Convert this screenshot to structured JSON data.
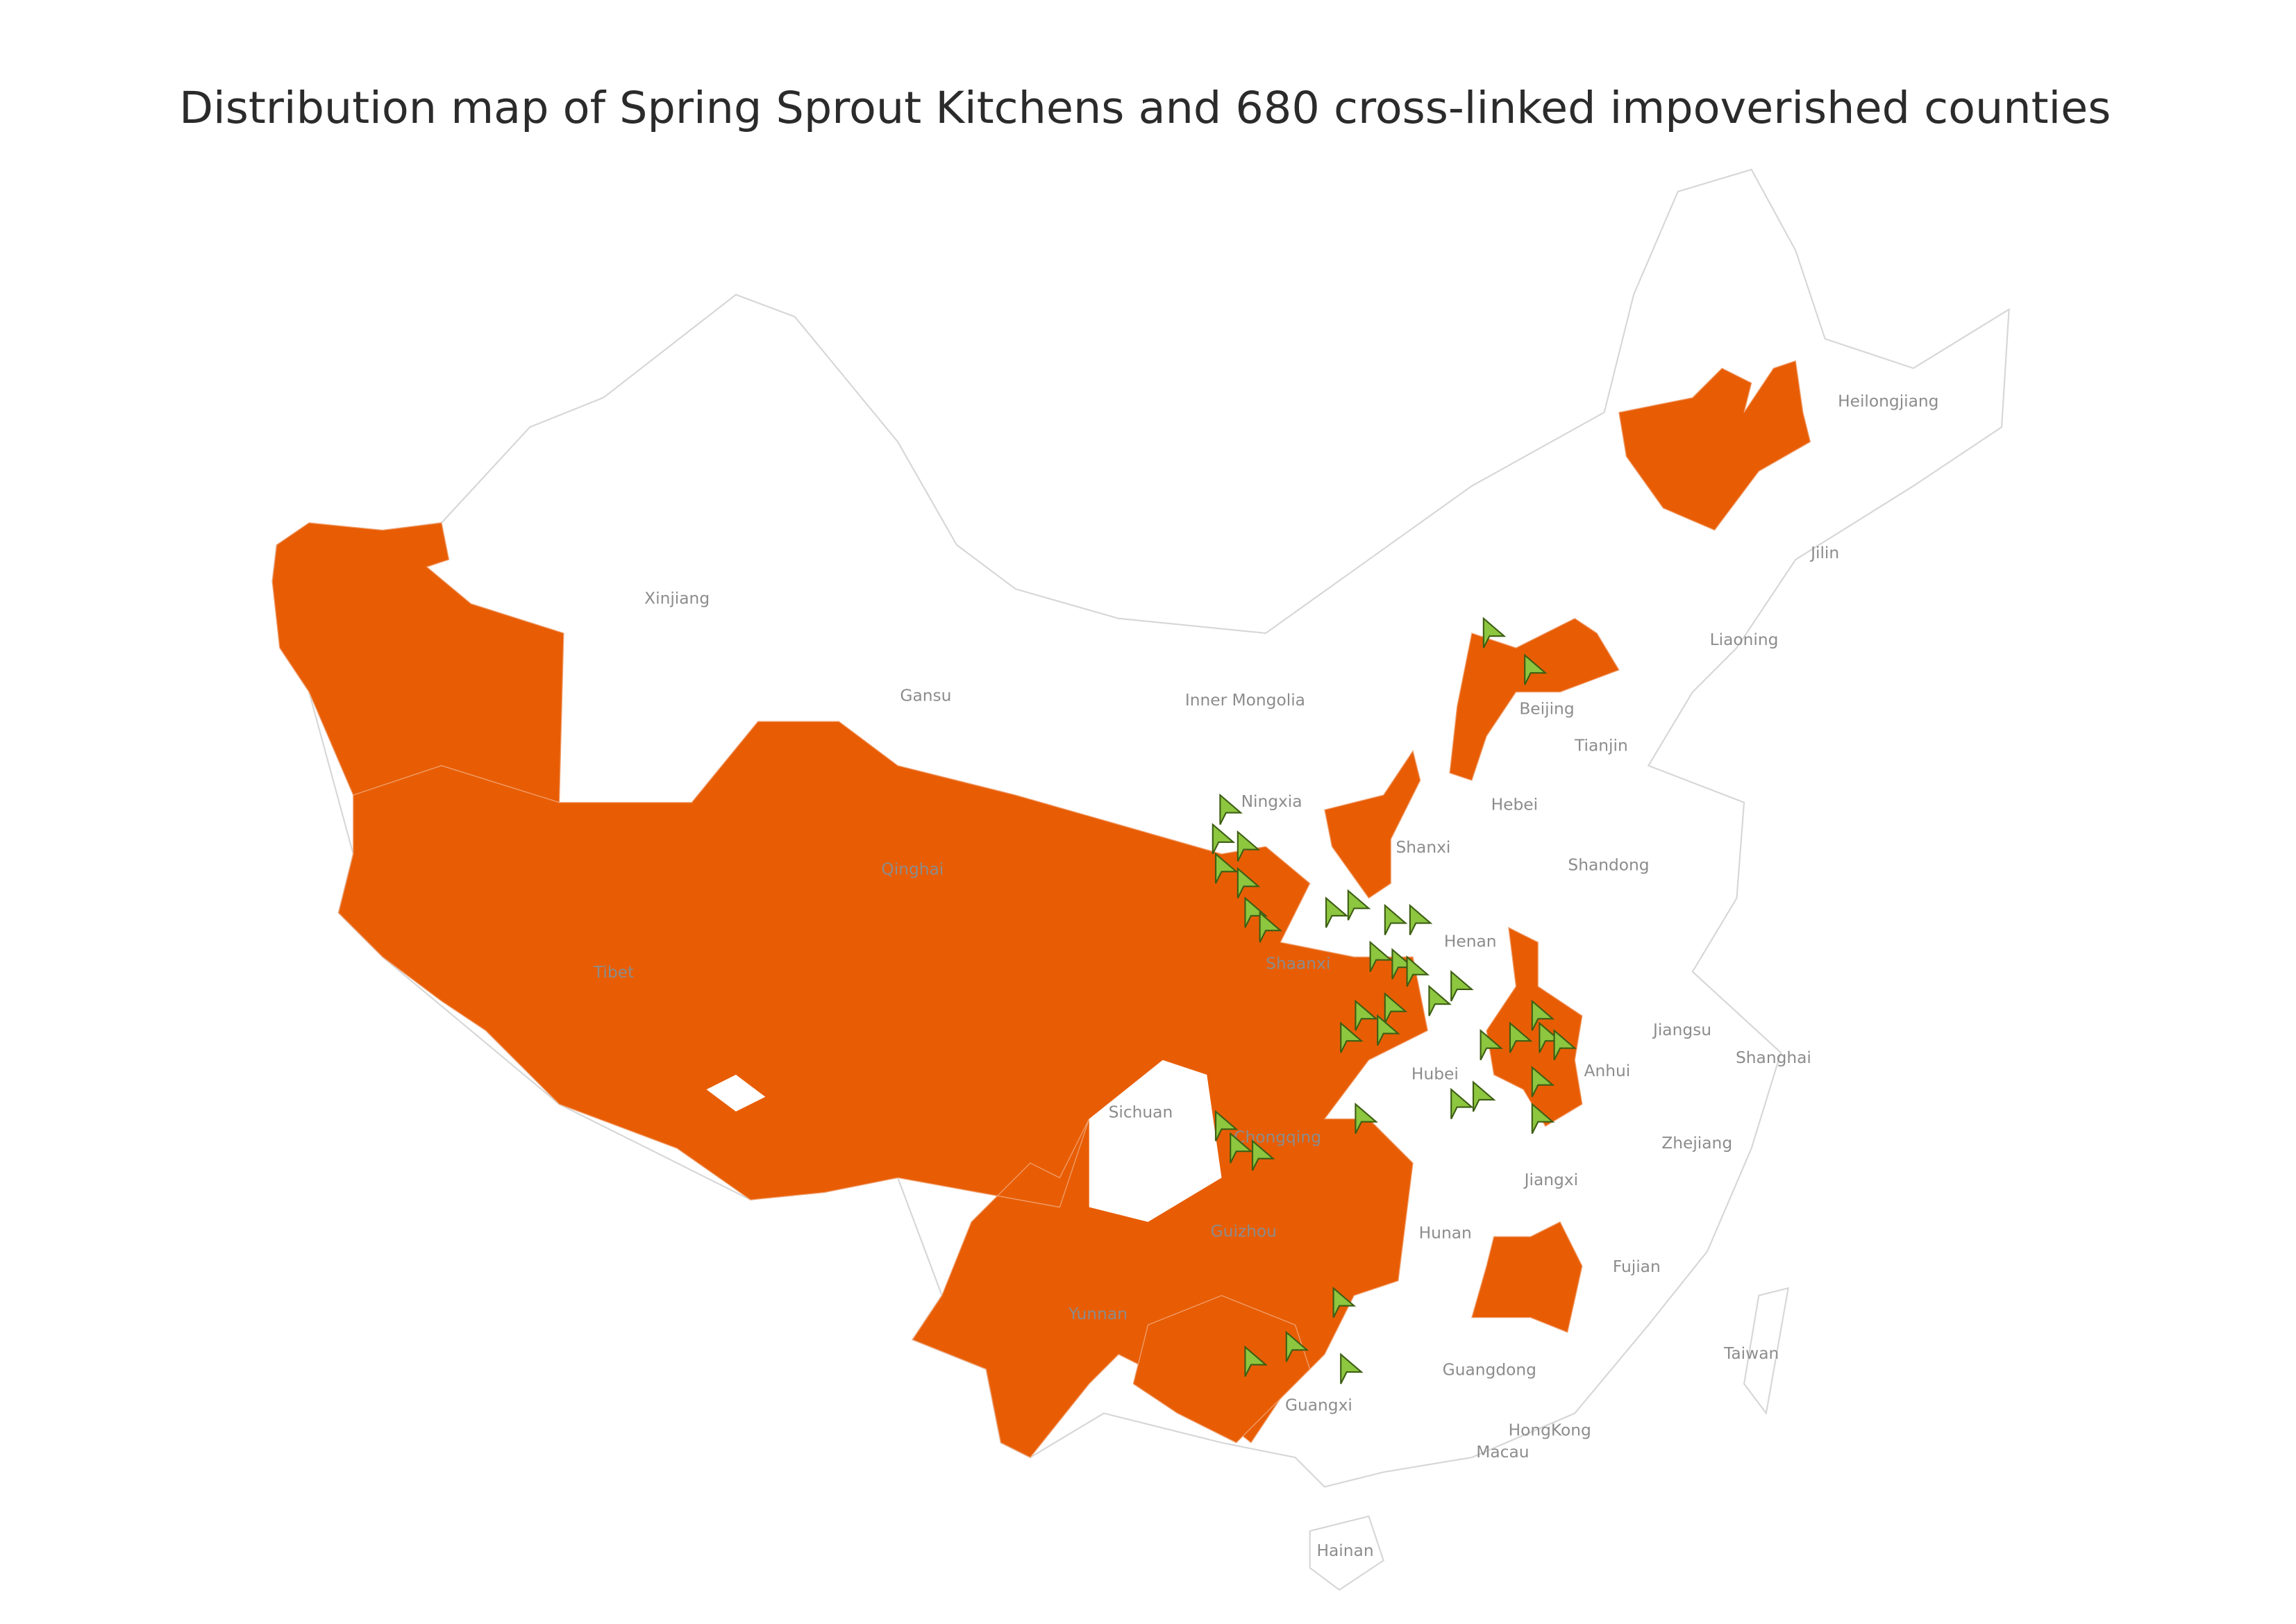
{
  "title": "Distribution map of Spring Sprout Kitchens and 680 cross-linked impoverished counties",
  "regions": [
    "Heilongjiang",
    "Jilin",
    "Liaoning",
    "Beijing",
    "Tianjin",
    "Hebei",
    "Shanxi",
    "Shandong",
    "Inner Mongolia",
    "Gansu",
    "Xinjiang",
    "Ningxia",
    "Qinghai",
    "Tibet",
    "Shaanxi",
    "Henan",
    "Jiangsu",
    "Shanghai",
    "Anhui",
    "Hubei",
    "Sichuan",
    "Chongqing",
    "Zhejiang",
    "Jiangxi",
    "Hunan",
    "Guizhou",
    "Fujian",
    "Yunnan",
    "Taiwan",
    "Guangdong",
    "Guangxi",
    "HongKong",
    "Macau",
    "Hainan"
  ]
}
